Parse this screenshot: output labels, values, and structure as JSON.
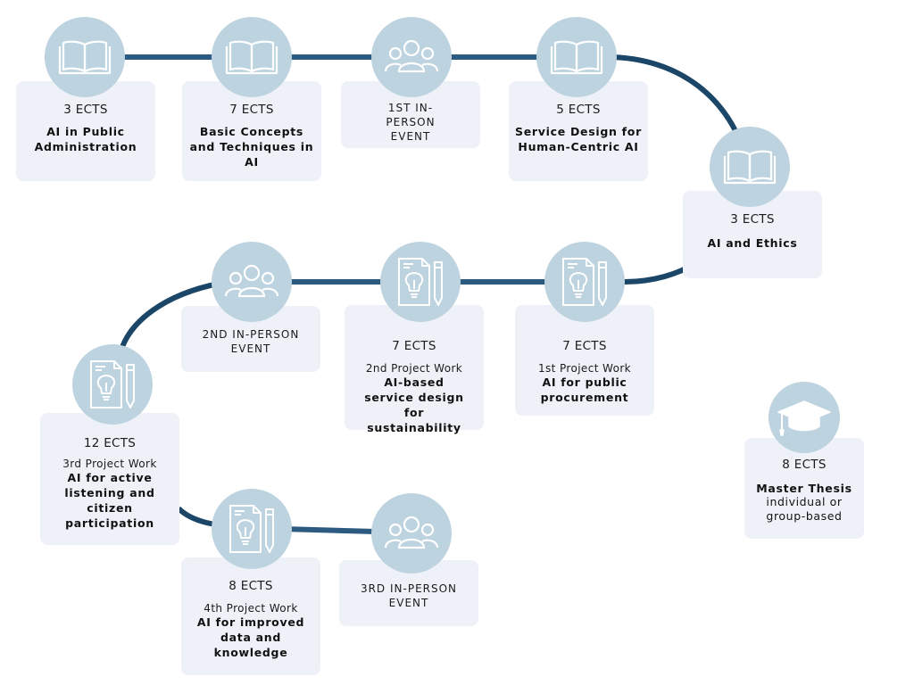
{
  "colors": {
    "path": "#1b4668",
    "path_light": "#2d5a80",
    "circle": "#bdd3df",
    "card": "#eef2f8",
    "icon_stroke": "#ffffff"
  },
  "modules": [
    {
      "ects": "3 ECTS",
      "title": "AI in Public Administration",
      "icon": "open-book-icon"
    },
    {
      "ects": "7 ECTS",
      "title": "Basic Concepts and Techniques in AI",
      "icon": "open-book-icon"
    },
    {
      "event": "1ST IN-PERSON EVENT",
      "icon": "group-people-icon"
    },
    {
      "ects": "5 ECTS",
      "title": "Service Design for Human-Centric AI",
      "icon": "open-book-icon"
    },
    {
      "ects": "3 ECTS",
      "title": "AI and Ethics",
      "icon": "open-book-icon"
    },
    {
      "ects": "7 ECTS",
      "subtitle": "1st Project Work",
      "title": "AI for public procurement",
      "icon": "idea-document-icon"
    },
    {
      "ects": "7 ECTS",
      "subtitle": "2nd Project Work",
      "title": "AI-based service design for sustainability",
      "icon": "idea-document-icon"
    },
    {
      "event": "2ND IN-PERSON EVENT",
      "icon": "group-people-icon"
    },
    {
      "ects": "12 ECTS",
      "subtitle": "3rd Project Work",
      "title": "AI for active listening and citizen participation",
      "icon": "idea-document-icon"
    },
    {
      "ects": "8 ECTS",
      "subtitle": "4th Project Work",
      "title": "AI for improved data and knowledge",
      "icon": "idea-document-icon"
    },
    {
      "event": "3RD IN-PERSON EVENT",
      "icon": "group-people-icon"
    }
  ],
  "thesis": {
    "ects": "8 ECTS",
    "title": "Master Thesis",
    "detail": "individual or group-based",
    "icon": "graduation-cap-icon"
  }
}
